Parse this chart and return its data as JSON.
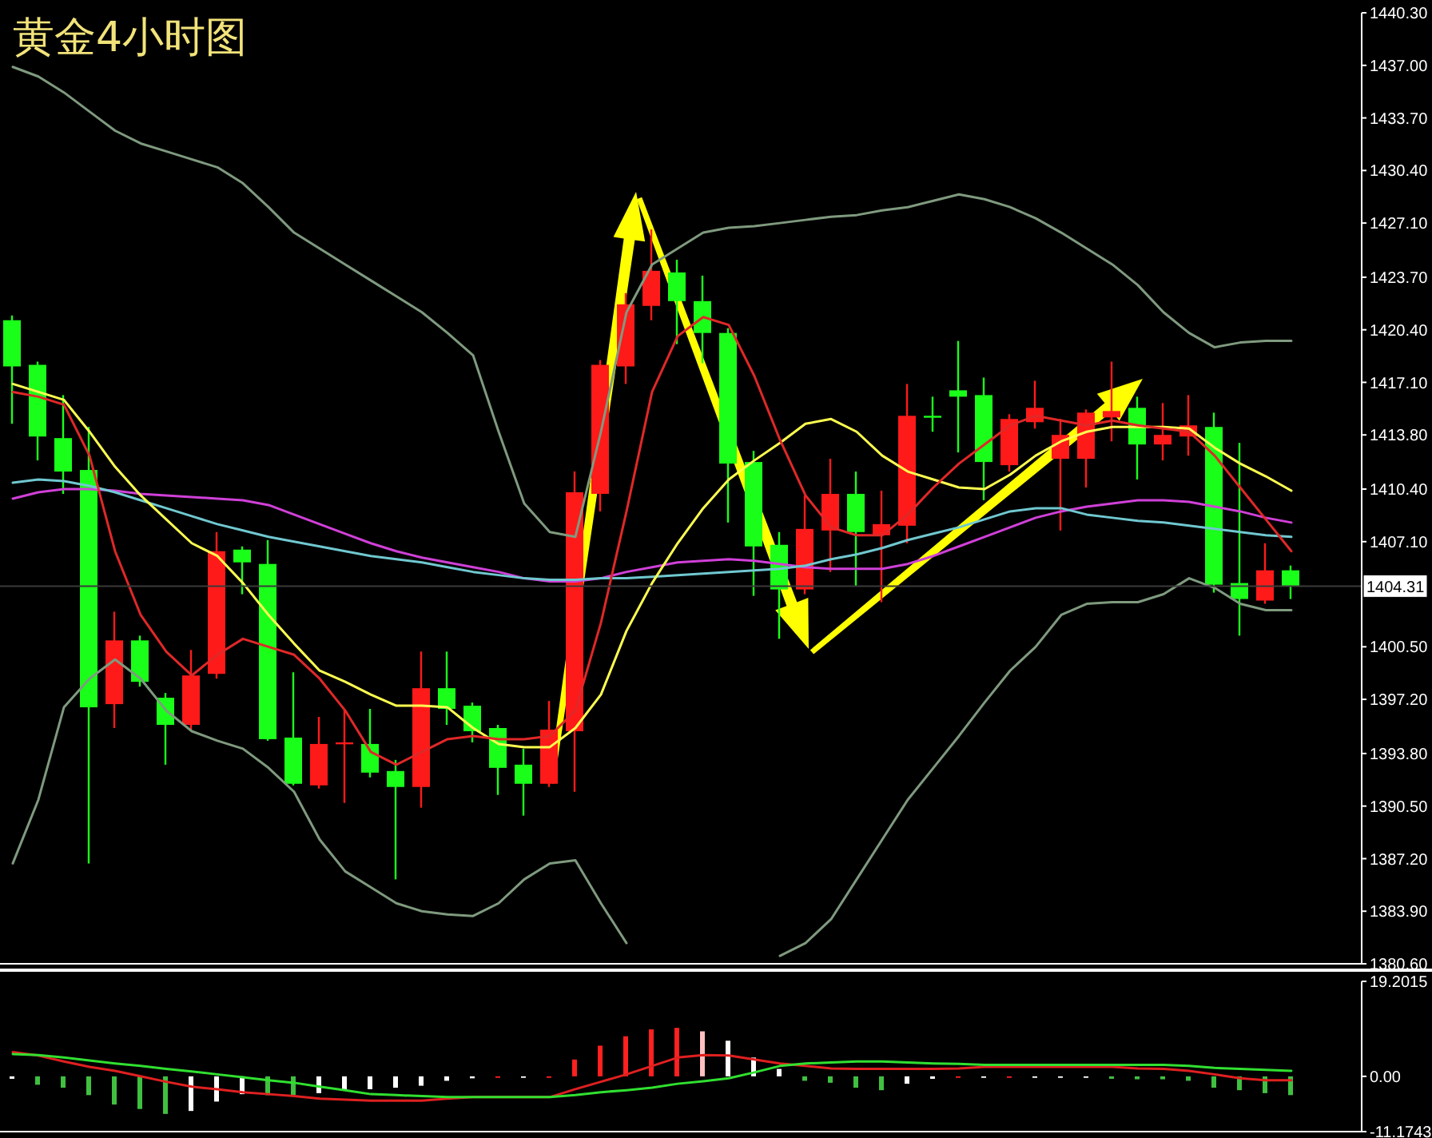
{
  "chart_data": [
    {
      "type": "candlestick",
      "title": "黄金4小时图",
      "categories": [
        null,
        null,
        null,
        null,
        null,
        null,
        null,
        null,
        null,
        null,
        null,
        null,
        null,
        null,
        null,
        null,
        null,
        null,
        null,
        null,
        null,
        null,
        null,
        null,
        null,
        null,
        null,
        null,
        null,
        null,
        null,
        null,
        null,
        null,
        null,
        null,
        null,
        null,
        null,
        null,
        null,
        null,
        null,
        null,
        null,
        null,
        null,
        null,
        null,
        null,
        null
      ],
      "ohlc": [
        [
          1421.0,
          1421.3,
          1414.5,
          1418.1
        ],
        [
          1418.2,
          1418.4,
          1412.2,
          1413.7
        ],
        [
          1413.6,
          1416.3,
          1410.1,
          1411.5
        ],
        [
          1411.6,
          1414.3,
          1386.9,
          1396.7
        ],
        [
          1396.9,
          1402.7,
          1395.4,
          1400.9
        ],
        [
          1400.9,
          1401.2,
          1398.0,
          1398.3
        ],
        [
          1397.3,
          1397.6,
          1393.1,
          1395.6
        ],
        [
          1395.6,
          1400.3,
          1395.2,
          1398.7
        ],
        [
          1398.8,
          1407.7,
          1398.5,
          1406.5
        ],
        [
          1406.6,
          1406.8,
          1403.8,
          1405.8
        ],
        [
          1405.7,
          1407.2,
          1394.6,
          1394.7
        ],
        [
          1394.8,
          1398.9,
          1391.8,
          1391.9
        ],
        [
          1391.8,
          1396.1,
          1391.6,
          1394.4
        ],
        [
          1394.4,
          1396.6,
          1390.7,
          1394.5
        ],
        [
          1394.4,
          1396.6,
          1392.3,
          1392.6
        ],
        [
          1392.7,
          1393.4,
          1385.9,
          1391.7
        ],
        [
          1391.7,
          1400.2,
          1390.4,
          1397.9
        ],
        [
          1397.9,
          1400.2,
          1395.6,
          1396.6
        ],
        [
          1396.8,
          1397.0,
          1394.5,
          1395.2
        ],
        [
          1395.4,
          1395.6,
          1391.2,
          1392.9
        ],
        [
          1393.1,
          1394.1,
          1389.9,
          1391.9
        ],
        [
          1391.9,
          1397.1,
          1391.7,
          1395.3
        ],
        [
          1395.2,
          1411.5,
          1391.4,
          1410.2
        ],
        [
          1410.1,
          1418.5,
          1409.0,
          1418.2
        ],
        [
          1418.1,
          1422.7,
          1417.0,
          1422.0
        ],
        [
          1421.9,
          1426.7,
          1421.0,
          1424.1
        ],
        [
          1424.0,
          1424.8,
          1419.5,
          1422.2
        ],
        [
          1422.2,
          1423.8,
          1418.3,
          1420.2
        ],
        [
          1420.2,
          1420.5,
          1408.3,
          1412.0
        ],
        [
          1412.1,
          1412.8,
          1403.7,
          1406.8
        ],
        [
          1406.9,
          1407.7,
          1401.0,
          1404.1
        ],
        [
          1404.1,
          1410.0,
          1403.8,
          1407.9
        ],
        [
          1407.8,
          1412.3,
          1405.2,
          1410.1
        ],
        [
          1410.1,
          1411.5,
          1404.3,
          1407.7
        ],
        [
          1407.5,
          1410.3,
          1403.3,
          1408.2
        ],
        [
          1408.1,
          1417.0,
          1407.0,
          1415.0
        ],
        [
          1415.0,
          1416.2,
          1414.0,
          1414.9
        ],
        [
          1416.6,
          1419.7,
          1412.7,
          1416.2
        ],
        [
          1416.3,
          1417.4,
          1409.7,
          1412.1
        ],
        [
          1411.9,
          1415.1,
          1411.5,
          1414.8
        ],
        [
          1414.6,
          1417.2,
          1414.2,
          1415.5
        ],
        [
          1412.3,
          1414.8,
          1407.8,
          1413.8
        ],
        [
          1412.3,
          1415.4,
          1410.5,
          1415.2
        ],
        [
          1414.9,
          1418.4,
          1413.4,
          1415.3
        ],
        [
          1415.5,
          1416.2,
          1411.0,
          1413.2
        ],
        [
          1413.2,
          1415.8,
          1412.2,
          1413.8
        ],
        [
          1413.7,
          1416.3,
          1412.5,
          1414.4
        ],
        [
          1414.3,
          1415.2,
          1403.9,
          1404.4
        ],
        [
          1404.5,
          1413.3,
          1401.2,
          1403.5
        ],
        [
          1403.4,
          1407.0,
          1403.2,
          1405.3
        ],
        [
          1405.3,
          1405.6,
          1403.5,
          1404.31
        ]
      ],
      "colors": [
        "#1aff1a",
        "#1aff1a",
        "#1aff1a",
        "#1aff1a",
        "#ff1a1a",
        "#1aff1a",
        "#1aff1a",
        "#ff1a1a",
        "#ff1a1a",
        "#1aff1a",
        "#1aff1a",
        "#1aff1a",
        "#ff1a1a",
        "#ff1a1a",
        "#1aff1a",
        "#1aff1a",
        "#ff1a1a",
        "#1aff1a",
        "#1aff1a",
        "#1aff1a",
        "#1aff1a",
        "#ff1a1a",
        "#ff1a1a",
        "#ff1a1a",
        "#ff1a1a",
        "#ff1a1a",
        "#1aff1a",
        "#1aff1a",
        "#1aff1a",
        "#1aff1a",
        "#1aff1a",
        "#ff1a1a",
        "#ff1a1a",
        "#1aff1a",
        "#ff1a1a",
        "#ff1a1a",
        "#1aff1a",
        "#1aff1a",
        "#1aff1a",
        "#ff1a1a",
        "#ff1a1a",
        "#ff1a1a",
        "#ff1a1a",
        "#ff1a1a",
        "#1aff1a",
        "#ff1a1a",
        "#ff1a1a",
        "#1aff1a",
        "#1aff1a",
        "#ff1a1a",
        "#1aff1a"
      ],
      "series": [
        {
          "type": "line",
          "color": "#7f9a7f",
          "values": [
            1436.9,
            1436.3,
            1435.3,
            1434.1,
            1432.9,
            1432.1,
            1431.6,
            1431.1,
            1430.6,
            1429.6,
            1428.1,
            1426.5,
            1425.5,
            1424.5,
            1423.5,
            1422.5,
            1421.5,
            1420.2,
            1418.8,
            1414.0,
            1409.5,
            1407.7,
            1407.4,
            1414.0,
            1421.5,
            1424.5,
            1425.5,
            1426.5,
            1426.8,
            1426.9,
            1427.1,
            1427.3,
            1427.5,
            1427.6,
            1427.9,
            1428.1,
            1428.5,
            1428.9,
            1428.6,
            1428.1,
            1427.4,
            1426.5,
            1425.5,
            1424.5,
            1423.2,
            1421.5,
            1420.2,
            1419.3,
            1419.6,
            1419.7,
            1419.7
          ]
        },
        {
          "type": "line",
          "color": "#7f9a7f",
          "values": [
            1386.9,
            1390.9,
            1396.7,
            1398.5,
            1399.7,
            1398.5,
            1396.5,
            1395.2,
            1394.6,
            1394.1,
            1392.9,
            1391.4,
            1388.4,
            1386.4,
            1385.4,
            1384.4,
            1383.9,
            1383.7,
            1383.6,
            1384.4,
            1385.9,
            1386.9,
            1387.1,
            1384.4,
            1381.9,
            null,
            null,
            null,
            null,
            null,
            1381.1,
            1381.9,
            1383.4,
            1385.9,
            1388.4,
            1390.9,
            1392.9,
            1394.9,
            1397.0,
            1399.0,
            1400.5,
            1402.5,
            1403.2,
            1403.3,
            1403.3,
            1403.8,
            1404.8,
            1404.2,
            1403.2,
            1402.8,
            1402.8
          ]
        },
        {
          "type": "line",
          "color": "#d040d8",
          "values": [
            1409.8,
            1410.2,
            1410.4,
            1410.4,
            1410.3,
            1410.1,
            1410.0,
            1409.9,
            1409.8,
            1409.7,
            1409.4,
            1408.8,
            1408.2,
            1407.6,
            1407.0,
            1406.5,
            1406.1,
            1405.8,
            1405.5,
            1405.2,
            1404.8,
            1404.6,
            1404.6,
            1404.8,
            1405.2,
            1405.5,
            1405.8,
            1405.9,
            1406.0,
            1405.9,
            1405.7,
            1405.5,
            1405.4,
            1405.4,
            1405.4,
            1405.7,
            1406.2,
            1406.8,
            1407.4,
            1408.0,
            1408.6,
            1409.0,
            1409.3,
            1409.5,
            1409.7,
            1409.7,
            1409.6,
            1409.3,
            1409.0,
            1408.6,
            1408.3
          ]
        },
        {
          "type": "line",
          "color": "#70c8d0",
          "values": [
            1410.8,
            1411.0,
            1410.9,
            1410.6,
            1410.2,
            1409.7,
            1409.2,
            1408.7,
            1408.2,
            1407.8,
            1407.4,
            1407.1,
            1406.8,
            1406.5,
            1406.2,
            1406.0,
            1405.8,
            1405.5,
            1405.2,
            1405.0,
            1404.8,
            1404.7,
            1404.7,
            1404.8,
            1404.8,
            1404.9,
            1405.0,
            1405.1,
            1405.2,
            1405.3,
            1405.4,
            1405.6,
            1406.0,
            1406.3,
            1406.7,
            1407.2,
            1407.6,
            1408.0,
            1408.5,
            1409.0,
            1409.2,
            1409.2,
            1408.8,
            1408.6,
            1408.4,
            1408.3,
            1408.1,
            1407.9,
            1407.7,
            1407.5,
            1407.4
          ]
        },
        {
          "type": "line",
          "color": "#ffff50",
          "values": [
            1417.0,
            1416.5,
            1416.0,
            1414.0,
            1411.8,
            1410.0,
            1408.5,
            1407.0,
            1406.2,
            1404.5,
            1402.5,
            1400.7,
            1399.0,
            1398.3,
            1397.5,
            1396.8,
            1396.8,
            1396.7,
            1395.4,
            1394.4,
            1394.2,
            1394.2,
            1395.4,
            1397.5,
            1401.5,
            1404.5,
            1407.0,
            1409.2,
            1411.0,
            1412.2,
            1413.3,
            1414.5,
            1414.8,
            1414.0,
            1412.5,
            1411.5,
            1411.0,
            1410.5,
            1410.4,
            1411.3,
            1412.5,
            1413.4,
            1414.0,
            1414.3,
            1414.3,
            1414.3,
            1414.2,
            1413.0,
            1412.0,
            1411.2,
            1410.3
          ]
        },
        {
          "type": "line",
          "color": "#e02828",
          "values": [
            1416.5,
            1416.2,
            1415.7,
            1412.5,
            1406.5,
            1402.5,
            1400.2,
            1398.7,
            1400.0,
            1401.0,
            1400.5,
            1400.0,
            1398.5,
            1396.5,
            1393.9,
            1393.1,
            1393.9,
            1394.7,
            1394.9,
            1394.7,
            1394.7,
            1394.9,
            1396.5,
            1402.0,
            1409.0,
            1416.5,
            1420.0,
            1421.2,
            1420.7,
            1417.5,
            1413.5,
            1410.0,
            1408.0,
            1407.5,
            1407.5,
            1408.8,
            1410.5,
            1412.0,
            1413.2,
            1414.4,
            1415.0,
            1414.7,
            1414.4,
            1414.7,
            1414.4,
            1414.2,
            1414.0,
            1412.5,
            1410.5,
            1408.5,
            1406.5
          ]
        }
      ],
      "ylim": [
        1380.6,
        1440.3
      ],
      "yticks": [
        {
          "value": 1440.3,
          "label": "1440.30"
        },
        {
          "value": 1437.0,
          "label": "1437.00"
        },
        {
          "value": 1433.7,
          "label": "1433.70"
        },
        {
          "value": 1430.4,
          "label": "1430.40"
        },
        {
          "value": 1427.1,
          "label": "1427.10"
        },
        {
          "value": 1423.7,
          "label": "1423.70"
        },
        {
          "value": 1420.4,
          "label": "1420.40"
        },
        {
          "value": 1417.1,
          "label": "1417.10"
        },
        {
          "value": 1413.8,
          "label": "1413.80"
        },
        {
          "value": 1410.4,
          "label": "1410.40"
        },
        {
          "value": 1407.1,
          "label": "1407.10"
        },
        {
          "value": 1400.5,
          "label": "1400.50"
        },
        {
          "value": 1397.2,
          "label": "1397.20"
        },
        {
          "value": 1393.8,
          "label": "1393.80"
        },
        {
          "value": 1390.5,
          "label": "1390.50"
        },
        {
          "value": 1387.2,
          "label": "1387.20"
        },
        {
          "value": 1383.9,
          "label": "1383.90"
        },
        {
          "value": 1380.6,
          "label": "1380.60"
        }
      ],
      "ref_lines": [
        {
          "axis": "y",
          "value": 1404.31,
          "label": "1404.31",
          "color": "#3a3a3a"
        }
      ],
      "tick_labels": "y"
    },
    {
      "type": "bar",
      "categories": [
        null,
        null,
        null,
        null,
        null,
        null,
        null,
        null,
        null,
        null,
        null,
        null,
        null,
        null,
        null,
        null,
        null,
        null,
        null,
        null,
        null,
        null,
        null,
        null,
        null,
        null,
        null,
        null,
        null,
        null,
        null,
        null,
        null,
        null,
        null,
        null,
        null,
        null,
        null,
        null,
        null,
        null,
        null,
        null,
        null,
        null,
        null,
        null,
        null,
        null,
        null
      ],
      "series": [
        {
          "type": "bar",
          "colors": [
            "#ffffff",
            "#40c040",
            "#40c040",
            "#40c040",
            "#40c040",
            "#40c040",
            "#40c040",
            "#ffffff",
            "#ffffff",
            "#ffffff",
            "#40c040",
            "#40c040",
            "#ffffff",
            "#ffffff",
            "#ffffff",
            "#ffffff",
            "#ffffff",
            "#ffffff",
            "#ffffff",
            "#ff2020",
            "#ffffff",
            "#ff2020",
            "#ff2020",
            "#ff2020",
            "#ff2020",
            "#ff2020",
            "#ff2020",
            "#ffc0c0",
            "#ffffff",
            "#ffffff",
            "#ffffff",
            "#40c040",
            "#40c040",
            "#40c040",
            "#40c040",
            "#ffffff",
            "#ffffff",
            "#ff2020",
            "#ffffff",
            "#ff2020",
            "#ffffff",
            "#ffffff",
            "#ffffff",
            "#40c040",
            "#40c040",
            "#40c040",
            "#40c040",
            "#40c040",
            "#40c040",
            "#40c040",
            "#40c040"
          ],
          "values": [
            -0.5,
            -1.7,
            -2.3,
            -3.8,
            -5.7,
            -6.6,
            -7.6,
            -7.0,
            -5.1,
            -3.6,
            -3.8,
            -3.8,
            -3.4,
            -2.6,
            -2.6,
            -2.3,
            -1.9,
            -0.9,
            -0.4,
            -0.3,
            -0.3,
            -0.3,
            3.4,
            6.2,
            8.1,
            9.5,
            9.8,
            9.1,
            7.2,
            3.8,
            1.5,
            -0.9,
            -1.3,
            -2.3,
            -2.8,
            -1.5,
            -0.5,
            -0.3,
            -0.3,
            -0.3,
            -0.3,
            -0.3,
            -0.3,
            -0.5,
            -0.6,
            -0.6,
            -0.9,
            -2.3,
            -2.8,
            -3.4,
            -3.8
          ]
        },
        {
          "type": "line",
          "color": "#e02020",
          "values": [
            4.9,
            4.2,
            3.0,
            1.9,
            1.1,
            0.0,
            -1.1,
            -2.1,
            -2.6,
            -3.2,
            -3.6,
            -4.0,
            -4.5,
            -4.7,
            -4.9,
            -4.9,
            -4.9,
            -4.5,
            -4.2,
            -4.2,
            -4.2,
            -4.2,
            -2.6,
            -1.1,
            0.4,
            2.1,
            3.8,
            4.3,
            4.2,
            3.4,
            2.6,
            2.1,
            1.6,
            1.5,
            1.5,
            1.5,
            1.5,
            1.6,
            1.9,
            1.9,
            1.9,
            1.9,
            1.9,
            1.9,
            1.6,
            1.5,
            1.1,
            0.4,
            -0.4,
            -0.8,
            -0.8
          ]
        },
        {
          "type": "line",
          "color": "#30e030",
          "values": [
            4.5,
            4.3,
            3.8,
            3.2,
            2.6,
            2.1,
            1.5,
            1.0,
            0.4,
            -0.2,
            -0.8,
            -1.3,
            -2.1,
            -2.8,
            -3.6,
            -3.8,
            -4.0,
            -4.2,
            -4.2,
            -4.2,
            -4.2,
            -4.2,
            -3.8,
            -3.2,
            -2.8,
            -2.3,
            -1.5,
            -1.0,
            -0.4,
            0.8,
            2.1,
            2.6,
            2.8,
            3.0,
            3.0,
            2.8,
            2.6,
            2.5,
            2.3,
            2.3,
            2.3,
            2.3,
            2.3,
            2.3,
            2.3,
            2.3,
            2.1,
            1.7,
            1.5,
            1.3,
            1.1
          ]
        }
      ],
      "ylim": [
        -11.1743,
        19.2015
      ],
      "yticks": [
        19.2015,
        {
          "value": 0,
          "label": "0.00"
        },
        -11.1743
      ],
      "tick_labels": "y"
    }
  ]
}
